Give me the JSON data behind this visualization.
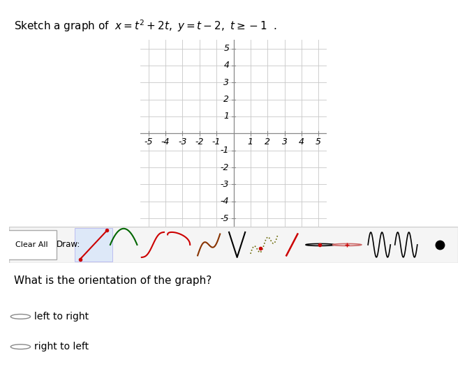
{
  "title_prefix": "Sketch a graph of  ",
  "equation_latex": "$x = t^2 + 2t,\\ y = t - 2,\\ t \\geq -1$  .",
  "xlim": [
    -5.5,
    5.5
  ],
  "ylim": [
    -5.5,
    5.5
  ],
  "grid_color": "#c8c8c8",
  "axis_color": "#888888",
  "tick_color": "#888888",
  "background_color": "#ffffff",
  "toolbar_bg": "#f5f5f5",
  "toolbar_border": "#cccccc",
  "question_text": "What is the orientation of the graph?",
  "option1": "left to right",
  "option2": "right to left",
  "title_fontsize": 11,
  "tick_fontsize": 9,
  "question_fontsize": 11
}
